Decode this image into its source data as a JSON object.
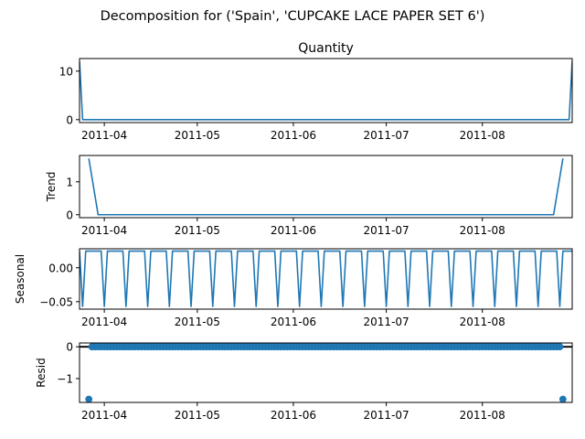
{
  "figure": {
    "suptitle": "Decomposition for ('Spain', 'CUPCAKE LACE PAPER SET 6')"
  },
  "colors": {
    "line": "#1f77b4",
    "axis": "#000000",
    "zero_line": "#000000"
  },
  "chart_data": [
    {
      "type": "line",
      "title": "Quantity",
      "ylabel": "",
      "x_start": "2011-03-24",
      "x_end": "2011-08-30",
      "xlim": [
        "2011-03-24",
        "2011-08-30"
      ],
      "ylim": [
        -0.6,
        12.6
      ],
      "yticks": [
        0,
        10
      ],
      "ytick_labels": [
        "0",
        "10"
      ],
      "xticks": [
        "2011-04-01",
        "2011-05-01",
        "2011-06-01",
        "2011-07-01",
        "2011-08-01"
      ],
      "xtick_labels": [
        "2011-04",
        "2011-05",
        "2011-06",
        "2011-07",
        "2011-08"
      ],
      "points": [
        [
          "2011-03-24",
          12
        ],
        [
          "2011-03-25",
          0
        ],
        [
          "2011-08-29",
          0
        ],
        [
          "2011-08-30",
          12
        ]
      ]
    },
    {
      "type": "line",
      "title": "",
      "ylabel": "Trend",
      "xlim": [
        "2011-03-24",
        "2011-08-30"
      ],
      "ylim": [
        -0.09,
        1.8
      ],
      "yticks": [
        0,
        1
      ],
      "ytick_labels": [
        "0",
        "1"
      ],
      "xticks": [
        "2011-04-01",
        "2011-05-01",
        "2011-06-01",
        "2011-07-01",
        "2011-08-01"
      ],
      "xtick_labels": [
        "2011-04",
        "2011-05",
        "2011-06",
        "2011-07",
        "2011-08"
      ],
      "points": [
        [
          "2011-03-27",
          1.71
        ],
        [
          "2011-03-30",
          0
        ],
        [
          "2011-08-24",
          0
        ],
        [
          "2011-08-27",
          1.71
        ]
      ]
    },
    {
      "type": "line",
      "title": "",
      "ylabel": "Seasonal",
      "xlim": [
        "2011-03-24",
        "2011-08-30"
      ],
      "ylim": [
        -0.061,
        0.028
      ],
      "yticks": [
        0.0,
        -0.05
      ],
      "ytick_labels": [
        "0.00",
        "−0.05"
      ],
      "xticks": [
        "2011-04-01",
        "2011-05-01",
        "2011-06-01",
        "2011-07-01",
        "2011-08-01"
      ],
      "xtick_labels": [
        "2011-04",
        "2011-05",
        "2011-06",
        "2011-07",
        "2011-08"
      ],
      "period_days": 7,
      "weekly_pattern": [
        0.0245,
        -0.0571,
        0.0245,
        0.0245,
        0.0245,
        0.0245,
        0.0245
      ]
    },
    {
      "type": "scatter",
      "title": "",
      "ylabel": "Resid",
      "xlim": [
        "2011-03-24",
        "2011-08-30"
      ],
      "ylim": [
        -1.75,
        0.12
      ],
      "yticks": [
        0,
        -1
      ],
      "ytick_labels": [
        "0",
        "−1"
      ],
      "xticks": [
        "2011-04-01",
        "2011-05-01",
        "2011-06-01",
        "2011-07-01",
        "2011-08-01"
      ],
      "xtick_labels": [
        "2011-04",
        "2011-05",
        "2011-06",
        "2011-07",
        "2011-08"
      ],
      "baseline": 0,
      "resid_start": "2011-03-27",
      "resid_end": "2011-08-27",
      "resid_default": 0,
      "outliers": [
        [
          "2011-03-27",
          -1.65
        ],
        [
          "2011-08-27",
          -1.65
        ]
      ]
    }
  ]
}
